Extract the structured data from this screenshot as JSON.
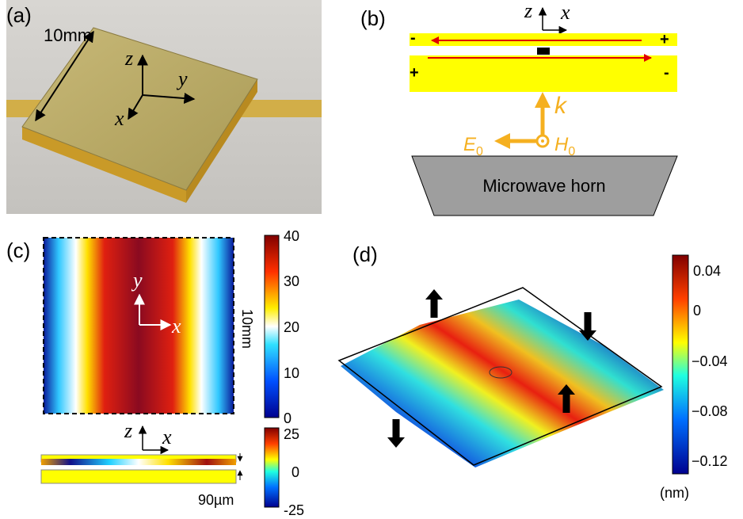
{
  "panels": {
    "a": {
      "label": "(a)",
      "size": "10mm",
      "axes": {
        "z": "z",
        "y": "y",
        "x": "x"
      }
    },
    "b": {
      "label": "(b)",
      "axes": {
        "z": "z",
        "x": "x"
      },
      "signs": {
        "top_left": "-",
        "top_right": "+",
        "bottom_left": "+",
        "bottom_right": "-"
      },
      "k": "k",
      "e_field": {
        "symbol": "E",
        "subscript": "0"
      },
      "h_field": {
        "symbol": "H",
        "subscript": "0"
      },
      "horn": "Microwave horn"
    },
    "c": {
      "label": "(c)",
      "axes": {
        "y": "y",
        "x": "x"
      },
      "size": "10mm",
      "colorbar_ticks": [
        "40",
        "30",
        "20",
        "10",
        "0"
      ],
      "section_axes": {
        "z": "z",
        "x": "x"
      },
      "gap": "90µm",
      "section_colorbar_ticks": [
        "25",
        "0",
        "-25"
      ]
    },
    "d": {
      "label": "(d)",
      "colorbar_ticks": [
        "0.04",
        "0",
        "−0.04",
        "−0.08",
        "−0.12"
      ],
      "unit": "(nm)"
    }
  }
}
